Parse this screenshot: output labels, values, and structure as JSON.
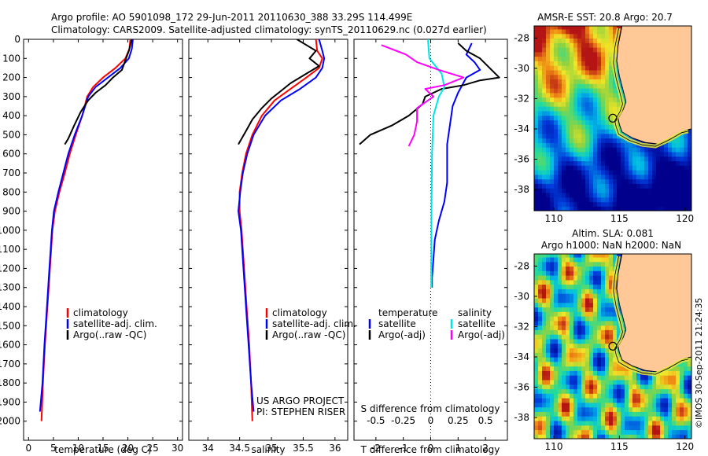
{
  "header": {
    "line1": "Argo profile: AO 5901098_172 29-Jun-2011 20110630_388 33.29S 114.499E",
    "line2": "Climatology: CARS2009. Satellite-adjusted climatology: synTS_20110629.nc (0.027d earlier)"
  },
  "colors": {
    "climatology": "#ff0000",
    "satellite": "#0000ff",
    "argo": "#000000",
    "sal_satellite": "#00e5e5",
    "sal_argo": "#ff00ff",
    "land": "#ffc896"
  },
  "chart_data": [
    {
      "type": "line",
      "panel": "temperature",
      "xlabel": "temperature (deg C)",
      "xlim": [
        -1,
        31
      ],
      "ylim": [
        0,
        2100
      ],
      "xticks": [
        "0",
        "5",
        "10",
        "15",
        "20",
        "25",
        "30"
      ],
      "yticks": [
        "0",
        "100",
        "200",
        "300",
        "400",
        "500",
        "600",
        "700",
        "800",
        "900",
        "1000",
        "1100",
        "1200",
        "1300",
        "1400",
        "1500",
        "1600",
        "1700",
        "1800",
        "1900",
        "2000"
      ],
      "legend": [
        "climatology",
        "satellite-adj. clim.",
        "Argo(..raw -QC)"
      ],
      "series": [
        {
          "name": "climatology",
          "points": [
            [
              20.5,
              0
            ],
            [
              20.3,
              50
            ],
            [
              19.5,
              100
            ],
            [
              17.5,
              150
            ],
            [
              15,
              200
            ],
            [
              13,
              250
            ],
            [
              11.8,
              300
            ],
            [
              10.8,
              400
            ],
            [
              9.5,
              500
            ],
            [
              8.3,
              600
            ],
            [
              7.3,
              700
            ],
            [
              6.2,
              800
            ],
            [
              5.3,
              900
            ],
            [
              4.8,
              1000
            ],
            [
              4.3,
              1200
            ],
            [
              3.8,
              1400
            ],
            [
              3.3,
              1600
            ],
            [
              2.9,
              1800
            ],
            [
              2.6,
              2000
            ]
          ]
        },
        {
          "name": "satellite-adj. clim.",
          "points": [
            [
              21,
              0
            ],
            [
              20.8,
              50
            ],
            [
              20.2,
              100
            ],
            [
              18.5,
              150
            ],
            [
              16,
              200
            ],
            [
              13.5,
              250
            ],
            [
              12,
              300
            ],
            [
              10.8,
              400
            ],
            [
              9.3,
              500
            ],
            [
              8,
              600
            ],
            [
              7,
              700
            ],
            [
              6,
              800
            ],
            [
              5.1,
              900
            ],
            [
              4.7,
              1000
            ],
            [
              4.2,
              1200
            ],
            [
              3.7,
              1400
            ],
            [
              3.2,
              1600
            ],
            [
              2.8,
              1800
            ],
            [
              2.3,
              1950
            ]
          ]
        },
        {
          "name": "Argo(..raw -QC)",
          "points": [
            [
              20.8,
              0
            ],
            [
              20.2,
              60
            ],
            [
              19.5,
              110
            ],
            [
              18.8,
              160
            ],
            [
              17,
              200
            ],
            [
              15.5,
              240
            ],
            [
              13.5,
              280
            ],
            [
              12,
              320
            ],
            [
              10.5,
              380
            ],
            [
              9.2,
              450
            ],
            [
              8,
              520
            ],
            [
              7.3,
              550
            ]
          ]
        }
      ]
    },
    {
      "type": "line",
      "panel": "salinity",
      "xlabel": "salinity",
      "xlim": [
        33.7,
        36.2
      ],
      "ylim": [
        0,
        2100
      ],
      "xticks": [
        "34",
        "34.5",
        "35",
        "35.5",
        "36"
      ],
      "legend": [
        "climatology",
        "satellite-adj. clim.",
        "Argo(..raw -QC)"
      ],
      "annotations": [
        "US ARGO PROJECT",
        "PI: STEPHEN RISER"
      ],
      "series": [
        {
          "name": "climatology",
          "points": [
            [
              35.7,
              0
            ],
            [
              35.72,
              60
            ],
            [
              35.8,
              100
            ],
            [
              35.75,
              150
            ],
            [
              35.55,
              200
            ],
            [
              35.3,
              260
            ],
            [
              35.05,
              320
            ],
            [
              34.85,
              400
            ],
            [
              34.7,
              500
            ],
            [
              34.6,
              600
            ],
            [
              34.54,
              700
            ],
            [
              34.5,
              800
            ],
            [
              34.5,
              900
            ],
            [
              34.53,
              1000
            ],
            [
              34.57,
              1200
            ],
            [
              34.61,
              1400
            ],
            [
              34.65,
              1600
            ],
            [
              34.68,
              1800
            ],
            [
              34.7,
              2000
            ]
          ]
        },
        {
          "name": "satellite-adj. clim.",
          "points": [
            [
              35.75,
              0
            ],
            [
              35.8,
              60
            ],
            [
              35.83,
              100
            ],
            [
              35.8,
              150
            ],
            [
              35.7,
              200
            ],
            [
              35.45,
              260
            ],
            [
              35.15,
              320
            ],
            [
              34.9,
              400
            ],
            [
              34.72,
              500
            ],
            [
              34.62,
              600
            ],
            [
              34.55,
              700
            ],
            [
              34.51,
              800
            ],
            [
              34.48,
              900
            ],
            [
              34.52,
              1000
            ],
            [
              34.56,
              1200
            ],
            [
              34.6,
              1400
            ],
            [
              34.64,
              1600
            ],
            [
              34.68,
              1800
            ],
            [
              34.72,
              1950
            ]
          ]
        },
        {
          "name": "Argo(..raw -QC)",
          "points": [
            [
              35.4,
              0
            ],
            [
              35.55,
              30
            ],
            [
              35.7,
              60
            ],
            [
              35.6,
              100
            ],
            [
              35.75,
              140
            ],
            [
              35.5,
              190
            ],
            [
              35.3,
              230
            ],
            [
              35.15,
              270
            ],
            [
              35,
              310
            ],
            [
              34.85,
              360
            ],
            [
              34.7,
              420
            ],
            [
              34.6,
              480
            ],
            [
              34.48,
              550
            ]
          ]
        }
      ]
    },
    {
      "type": "line",
      "panel": "difference",
      "xlabel": "T difference from climatology",
      "xlabel2": "S difference from climatology",
      "xlim": [
        -2.8,
        2.8
      ],
      "ylim": [
        0,
        2100
      ],
      "xticks": [
        "-2",
        "-1",
        "0",
        "1",
        "2"
      ],
      "xticks_top": [
        "-0.5",
        "-0.25",
        "0",
        "0.25",
        "0.5"
      ],
      "legend": [
        "temperature",
        "satellite",
        "Argo(-adj)",
        "salinity",
        "satellite",
        "Argo(-adj)"
      ],
      "series": [
        {
          "name": "satellite",
          "points": [
            [
              1.5,
              20
            ],
            [
              1.3,
              80
            ],
            [
              1.6,
              120
            ],
            [
              1.8,
              160
            ],
            [
              1.3,
              200
            ],
            [
              1,
              280
            ],
            [
              0.8,
              350
            ],
            [
              0.7,
              450
            ],
            [
              0.6,
              550
            ],
            [
              0.6,
              650
            ],
            [
              0.6,
              750
            ],
            [
              0.5,
              850
            ],
            [
              0.3,
              950
            ],
            [
              0.15,
              1050
            ],
            [
              0.1,
              1150
            ],
            [
              0.05,
              1250
            ],
            [
              0.05,
              1300
            ]
          ]
        },
        {
          "name": "Argo(-adj)",
          "points": [
            [
              1,
              20
            ],
            [
              1.3,
              60
            ],
            [
              1.8,
              100
            ],
            [
              2.5,
              200
            ],
            [
              1.8,
              215
            ],
            [
              1.2,
              240
            ],
            [
              0.4,
              260
            ],
            [
              -0.2,
              300
            ],
            [
              -0.3,
              340
            ],
            [
              -0.8,
              400
            ],
            [
              -1.4,
              450
            ],
            [
              -2.2,
              500
            ],
            [
              -2.6,
              550
            ]
          ]
        },
        {
          "name": "satellite",
          "points": [
            [
              -0.1,
              0
            ],
            [
              -0.05,
              100
            ],
            [
              0.4,
              180
            ],
            [
              0.5,
              250
            ],
            [
              0.3,
              300
            ],
            [
              0.1,
              400
            ],
            [
              0.05,
              600
            ],
            [
              0.03,
              900
            ],
            [
              0.02,
              1200
            ],
            [
              0.02,
              1300
            ]
          ]
        },
        {
          "name": "Argo(-adj)",
          "points": [
            [
              -1.8,
              30
            ],
            [
              -0.9,
              80
            ],
            [
              -0.5,
              120
            ],
            [
              0.3,
              160
            ],
            [
              1.2,
              200
            ],
            [
              0.5,
              240
            ],
            [
              -0.2,
              260
            ],
            [
              0.1,
              300
            ],
            [
              -0.5,
              360
            ],
            [
              -0.5,
              430
            ],
            [
              -0.6,
              500
            ],
            [
              -0.8,
              560
            ]
          ]
        }
      ]
    },
    {
      "type": "heatmap",
      "panel": "map-sst",
      "title": "AMSR-E SST: 20.8 Argo: 20.7",
      "xlim": [
        108.5,
        120.5
      ],
      "ylim": [
        -39.4,
        -27.2
      ],
      "xticks": [
        "110",
        "115",
        "120"
      ],
      "yticks": [
        "-28",
        "-30",
        "-32",
        "-34",
        "-36",
        "-38"
      ],
      "marker": [
        114.499,
        -33.29
      ]
    },
    {
      "type": "heatmap",
      "panel": "map-sla",
      "title": "Altim. SLA: 0.081",
      "subtitle": "Argo h1000: NaN h2000: NaN",
      "xlim": [
        108.5,
        120.5
      ],
      "ylim": [
        -39.4,
        -27.2
      ],
      "xticks": [
        "110",
        "115",
        "120"
      ],
      "yticks": [
        "-28",
        "-30",
        "-32",
        "-34",
        "-36",
        "-38"
      ],
      "marker": [
        114.499,
        -33.29
      ]
    }
  ],
  "footer": {
    "credit": "©IMOS 30-Sep-2011 21:24:35"
  }
}
